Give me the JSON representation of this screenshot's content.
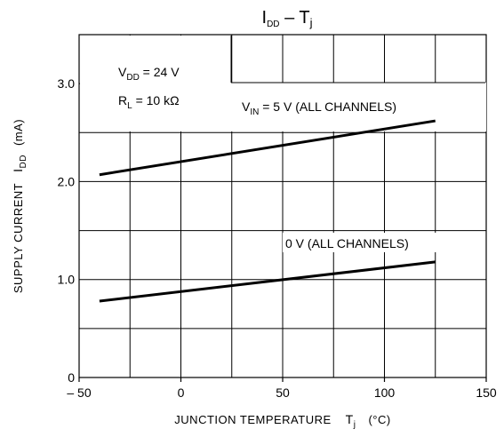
{
  "chart_data": {
    "type": "line",
    "title": {
      "main": "I",
      "main_sub": "DD",
      "sep": " – ",
      "var": "T",
      "var_sub": "j"
    },
    "xlabel": {
      "text": "JUNCTION TEMPERATURE",
      "var": "T",
      "var_sub": "j",
      "unit": "(°C)"
    },
    "ylabel": {
      "text": "SUPPLY CURRENT",
      "var": "I",
      "var_sub": "DD",
      "unit": "(mA)"
    },
    "xlim": [
      -50,
      150
    ],
    "ylim": [
      0,
      3.5
    ],
    "x_ticks": [
      -50,
      0,
      50,
      100,
      150
    ],
    "x_tick_labels": [
      "– 50",
      "0",
      "50",
      "100",
      "150"
    ],
    "y_ticks": [
      0,
      1.0,
      2.0,
      3.0
    ],
    "y_tick_labels": [
      "0",
      "1.0",
      "2.0",
      "3.0"
    ],
    "x_grid": [
      -25,
      0,
      25,
      50,
      75,
      100,
      125
    ],
    "y_grid": [
      0.5,
      1.0,
      1.5,
      2.0,
      2.5,
      3.0
    ],
    "grid": true,
    "series": [
      {
        "name": "V_IN = 5 V (ALL CHANNELS)",
        "x": [
          -40,
          125
        ],
        "y": [
          2.07,
          2.62
        ]
      },
      {
        "name": "0 V (ALL CHANNELS)",
        "x": [
          -40,
          125
        ],
        "y": [
          0.78,
          1.18
        ]
      }
    ],
    "annotations": {
      "conditions": {
        "vdd": {
          "var": "V",
          "sub": "DD",
          "value": " = 24 V"
        },
        "rl": {
          "var": "R",
          "sub": "L",
          "value": " = 10 kΩ"
        }
      },
      "series1_label": {
        "var": "V",
        "sub": "IN",
        "value": " = 5 V (ALL CHANNELS)"
      },
      "series2_label": {
        "text": "0 V (ALL CHANNELS)"
      }
    }
  }
}
